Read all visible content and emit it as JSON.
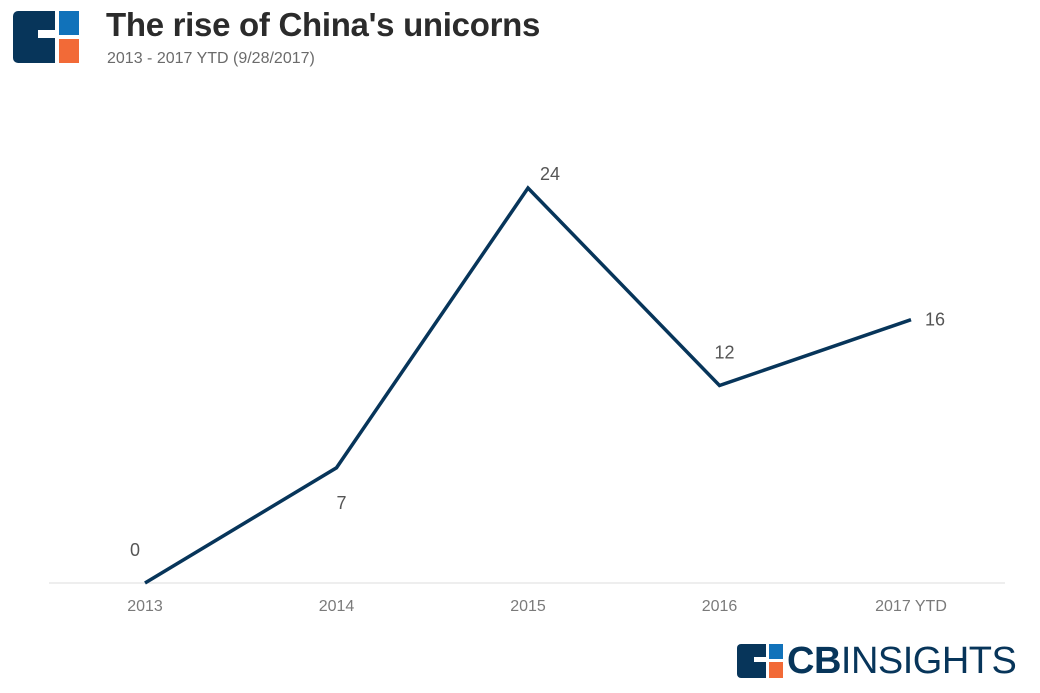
{
  "header": {
    "title": "The rise of China's unicorns",
    "subtitle": "2013 - 2017 YTD (9/28/2017)",
    "logo_icon": "cb-insights-logo-icon"
  },
  "chart_data": {
    "type": "line",
    "title": "The rise of China's unicorns",
    "subtitle": "2013 - 2017 YTD (9/28/2017)",
    "categories": [
      "2013",
      "2014",
      "2015",
      "2016",
      "2017 YTD"
    ],
    "series": [
      {
        "values": [
          0,
          7,
          24,
          12,
          16
        ],
        "color": "#07355a"
      }
    ],
    "data_labels": [
      "0",
      "7",
      "24",
      "12",
      "16"
    ],
    "xlabel": "",
    "ylabel": "",
    "ylim": [
      0,
      24
    ],
    "grid": false,
    "legend": "none"
  },
  "footer": {
    "brand_cb": "CB",
    "brand_insights": "INSIGHTS",
    "brand_color": "#07355a"
  },
  "colors": {
    "navy": "#07355a",
    "blue": "#1172ba",
    "orange": "#f26a37",
    "baseline": "#dddddd"
  }
}
